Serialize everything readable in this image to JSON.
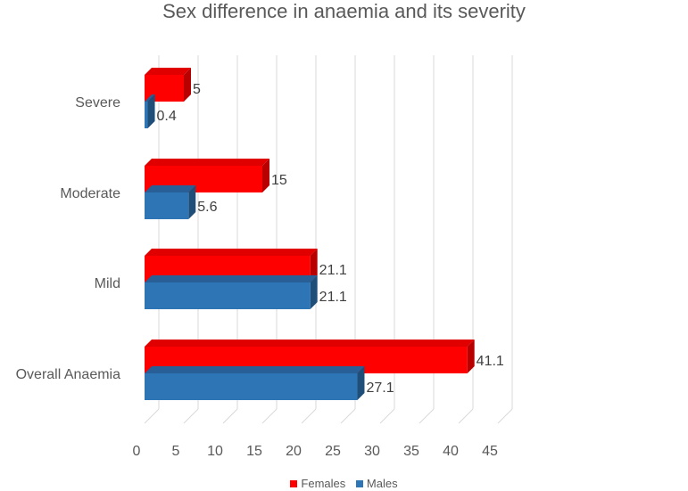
{
  "chart_data": {
    "type": "bar",
    "orientation": "horizontal",
    "title": "Sex difference in anaemia and its severity",
    "categories": [
      "Overall Anaemia",
      "Mild",
      "Moderate",
      "Severe"
    ],
    "series": [
      {
        "name": "Females",
        "color": "#ff0000",
        "values": [
          41.1,
          21.1,
          15,
          5
        ]
      },
      {
        "name": "Males",
        "color": "#2e75b6",
        "values": [
          27.1,
          21.1,
          5.6,
          0.4
        ]
      }
    ],
    "value_labels": {
      "Females": [
        "41.1",
        "21.1",
        "15",
        "5"
      ],
      "Males": [
        "27.1",
        "21.1",
        "5.6",
        "0.4"
      ]
    },
    "xticks": [
      "0",
      "5",
      "10",
      "15",
      "20",
      "25",
      "30",
      "35",
      "40",
      "45"
    ],
    "xlim": [
      0,
      45
    ],
    "xlabel": "",
    "ylabel": "",
    "grid": true,
    "legend_position": "bottom"
  }
}
